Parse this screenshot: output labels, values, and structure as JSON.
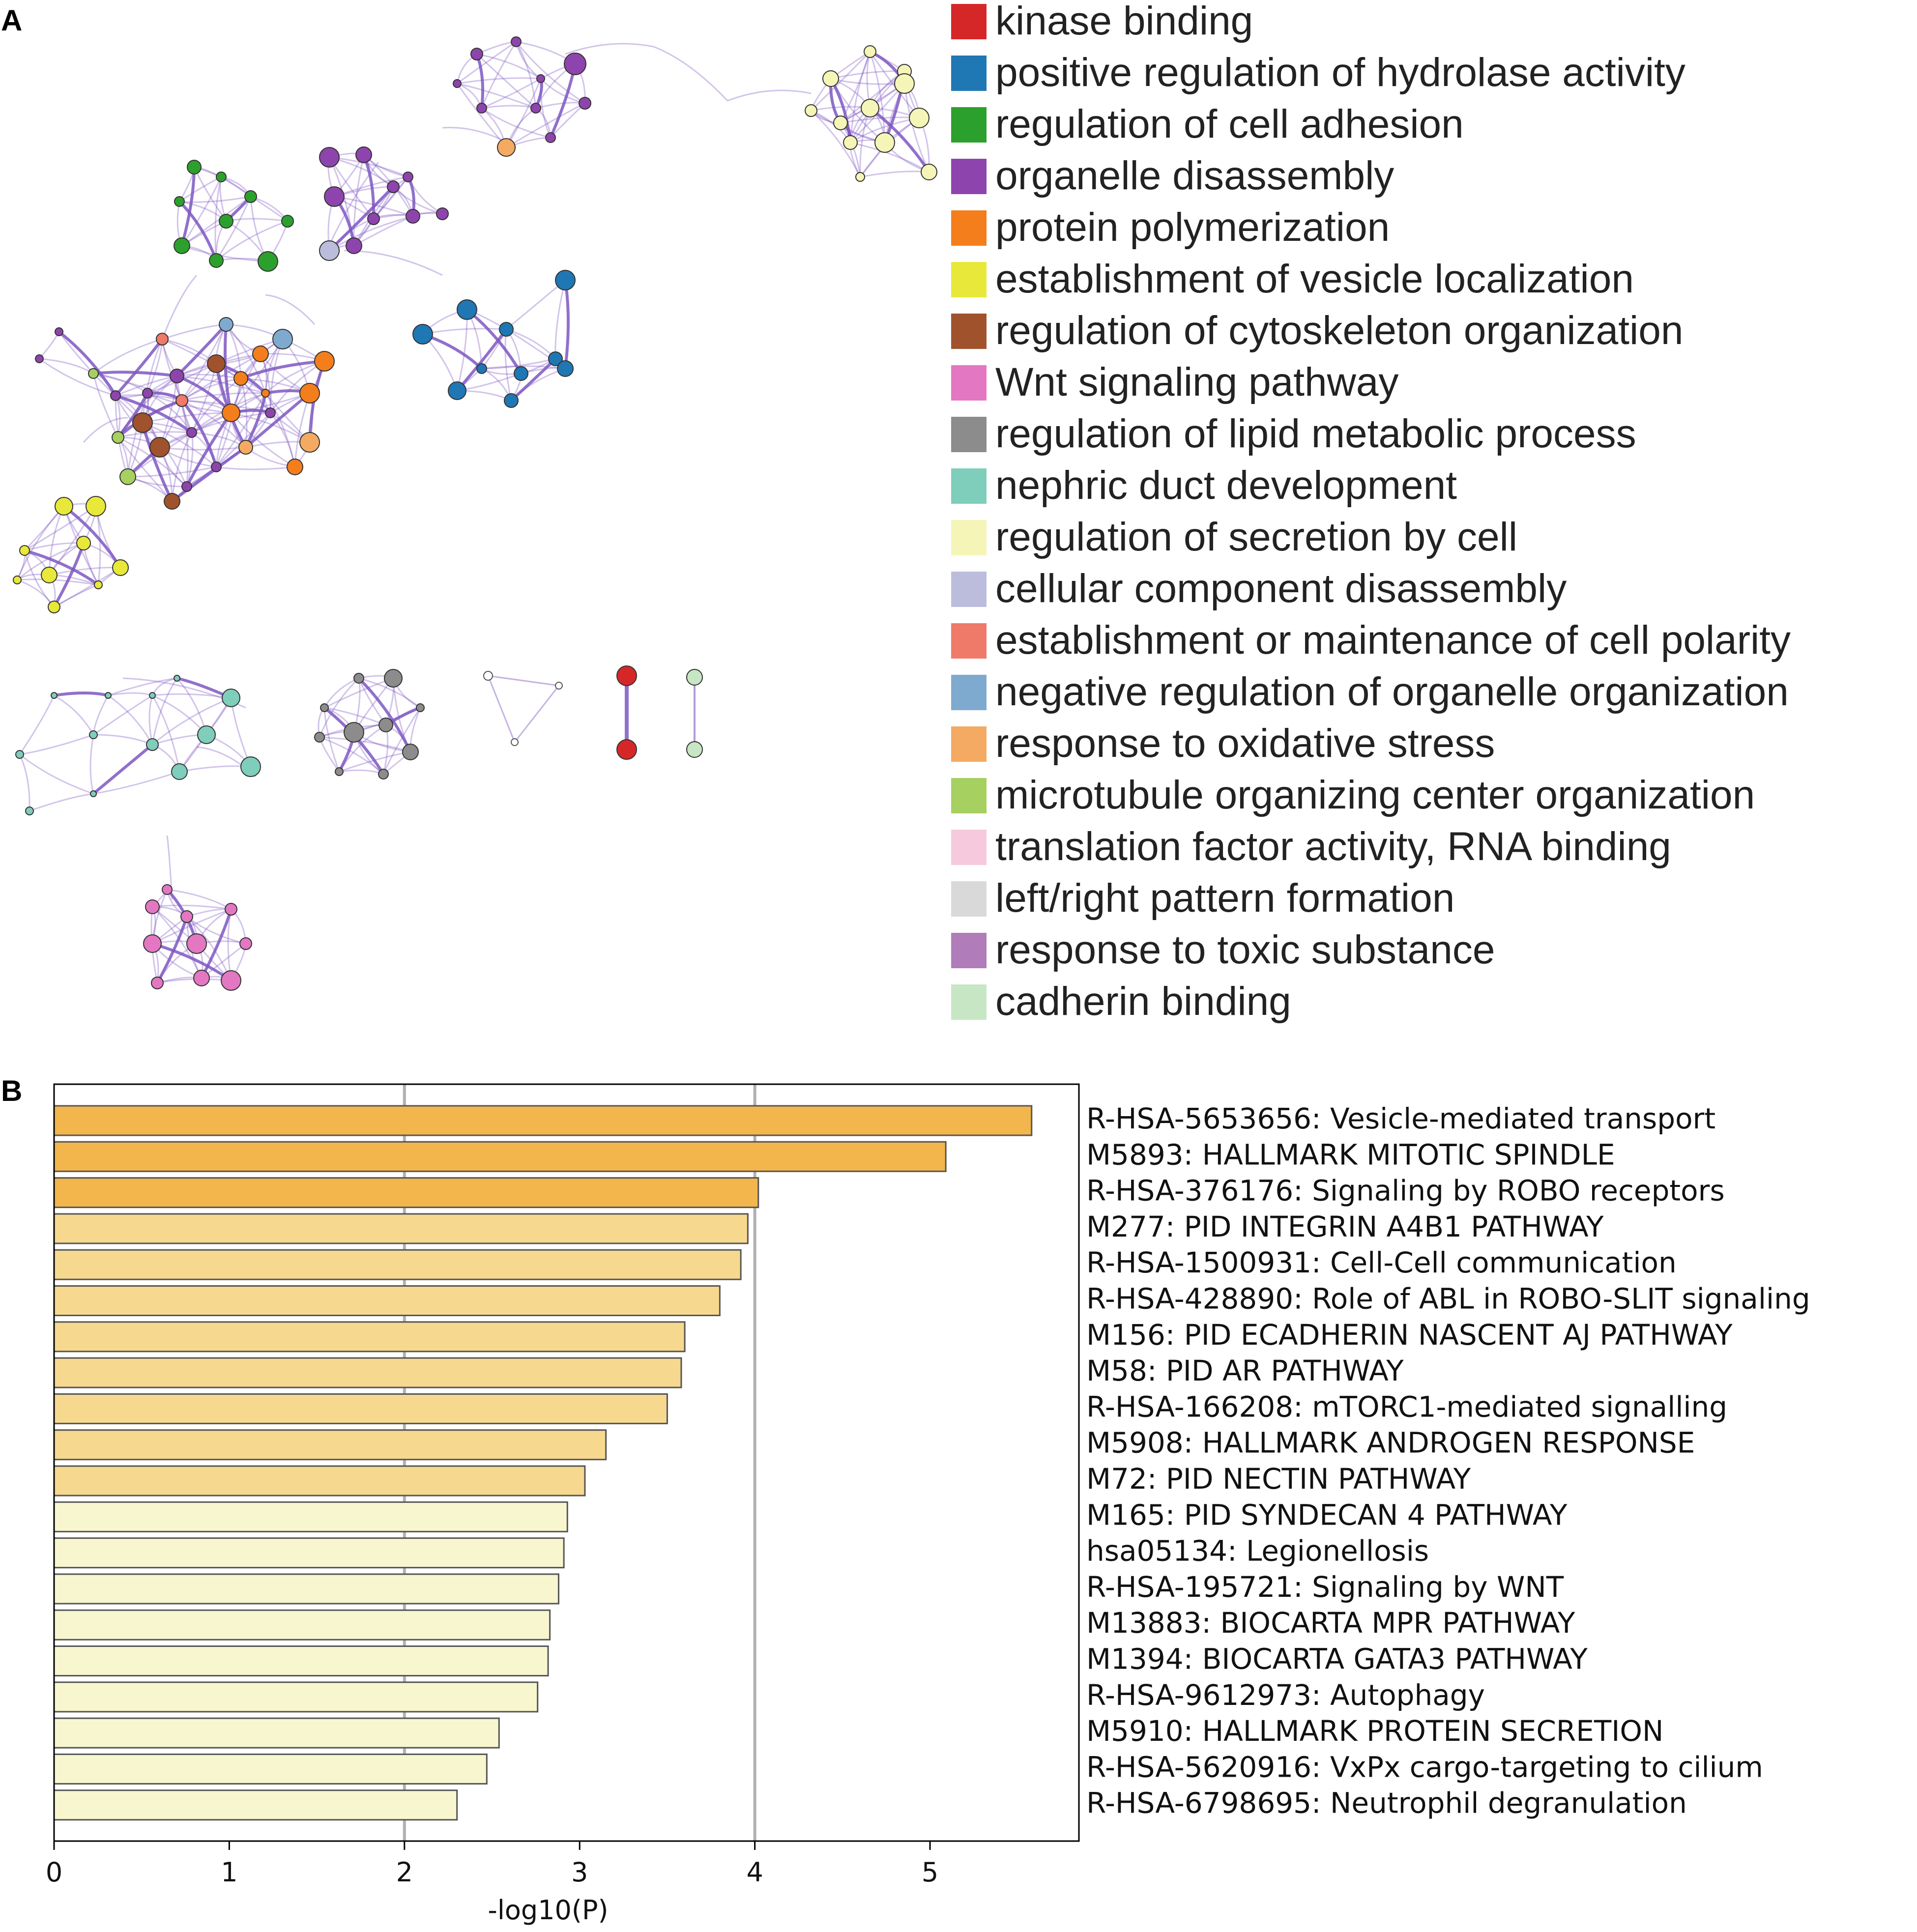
{
  "panels": {
    "a_label": "A",
    "b_label": "B"
  },
  "network_legend": [
    {
      "label": "kinase binding",
      "color": "#d62728"
    },
    {
      "label": "positive regulation of hydrolase activity",
      "color": "#1f77b4"
    },
    {
      "label": "regulation of cell adhesion",
      "color": "#2ca02c"
    },
    {
      "label": "organelle disassembly",
      "color": "#8e44ad"
    },
    {
      "label": "protein polymerization",
      "color": "#f47e1c"
    },
    {
      "label": "establishment of vesicle localization",
      "color": "#e8e83a"
    },
    {
      "label": "regulation of cytoskeleton organization",
      "color": "#a0522d"
    },
    {
      "label": "Wnt signaling pathway",
      "color": "#e377c2"
    },
    {
      "label": "regulation of lipid metabolic process",
      "color": "#8c8c8c"
    },
    {
      "label": "nephric duct development",
      "color": "#7fcdbb"
    },
    {
      "label": "regulation of secretion by cell",
      "color": "#f5f5b8"
    },
    {
      "label": "cellular component disassembly",
      "color": "#bcbddc"
    },
    {
      "label": "establishment or maintenance of cell polarity",
      "color": "#ef7a6a"
    },
    {
      "label": "negative regulation of organelle organization",
      "color": "#7faacf"
    },
    {
      "label": "response to oxidative stress",
      "color": "#f4aa62"
    },
    {
      "label": "microtubule organizing center organization",
      "color": "#a6d05f"
    },
    {
      "label": "translation factor activity, RNA binding",
      "color": "#f6c9dd"
    },
    {
      "label": "left/right pattern formation",
      "color": "#d9d9d9"
    },
    {
      "label": "response to toxic substance",
      "color": "#b07cba"
    },
    {
      "label": "cadherin binding",
      "color": "#c7e6c4"
    }
  ],
  "colors": {
    "edge": "#7e57c2",
    "bar_dark": "#f2b64c",
    "bar_mid": "#f6d98e",
    "bar_light": "#f8f6cf",
    "bar_stroke": "#555555",
    "gridline": "#b0b0b0"
  },
  "chart_data": {
    "type": "bar",
    "orientation": "horizontal",
    "xlabel": "-log10(P)",
    "xlim": [
      0,
      5.85
    ],
    "xticks": [
      0,
      1,
      2,
      3,
      4,
      5
    ],
    "gridlines": [
      2,
      4
    ],
    "categories": [
      "R-HSA-5653656: Vesicle-mediated transport",
      "M5893: HALLMARK MITOTIC SPINDLE",
      "R-HSA-376176: Signaling by ROBO receptors",
      "M277: PID INTEGRIN A4B1 PATHWAY",
      "R-HSA-1500931: Cell-Cell communication",
      "R-HSA-428890: Role of ABL in ROBO-SLIT signaling",
      "M156: PID ECADHERIN NASCENT AJ PATHWAY",
      "M58: PID AR PATHWAY",
      "R-HSA-166208: mTORC1-mediated signalling",
      "M5908: HALLMARK ANDROGEN RESPONSE",
      "M72: PID NECTIN PATHWAY",
      "M165: PID SYNDECAN 4 PATHWAY",
      "hsa05134: Legionellosis",
      "R-HSA-195721: Signaling by WNT",
      "M13883: BIOCARTA MPR PATHWAY",
      "M1394: BIOCARTA GATA3 PATHWAY",
      "R-HSA-9612973: Autophagy",
      "M5910: HALLMARK PROTEIN SECRETION",
      "R-HSA-5620916: VxPx cargo-targeting to cilium",
      "R-HSA-6798695: Neutrophil degranulation"
    ],
    "values": [
      5.58,
      5.09,
      4.02,
      3.96,
      3.92,
      3.8,
      3.6,
      3.58,
      3.5,
      3.15,
      3.03,
      2.93,
      2.91,
      2.88,
      2.83,
      2.82,
      2.76,
      2.54,
      2.47,
      2.3
    ],
    "color_tiers": [
      "dark",
      "dark",
      "dark",
      "mid",
      "mid",
      "mid",
      "mid",
      "mid",
      "mid",
      "mid",
      "mid",
      "light",
      "light",
      "light",
      "light",
      "light",
      "light",
      "light",
      "light",
      "light"
    ]
  }
}
